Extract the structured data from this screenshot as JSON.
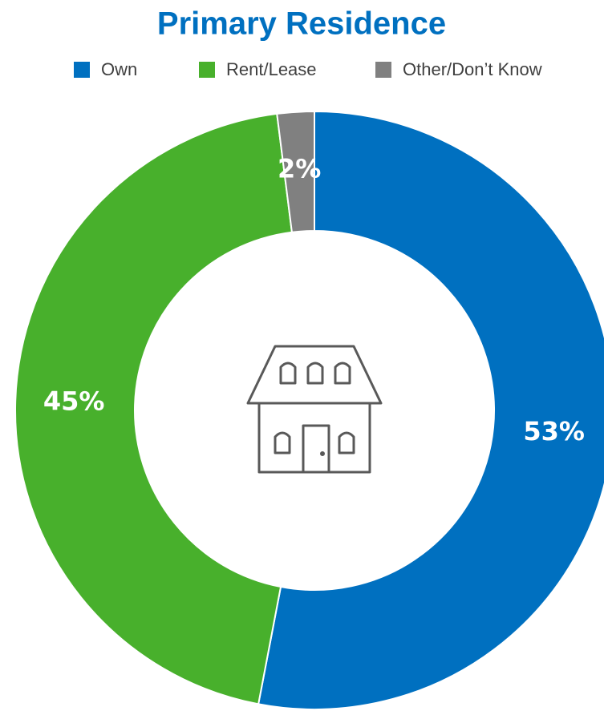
{
  "chart_data": {
    "type": "pie",
    "title": "Primary Residence",
    "categories": [
      "Own",
      "Rent/Lease",
      "Other/Don’t Know"
    ],
    "values": [
      53,
      45,
      2
    ],
    "value_labels": [
      "53%",
      "45%",
      "2%"
    ],
    "colors": [
      "#0070c0",
      "#48b02c",
      "#808080"
    ],
    "legend": "top"
  }
}
